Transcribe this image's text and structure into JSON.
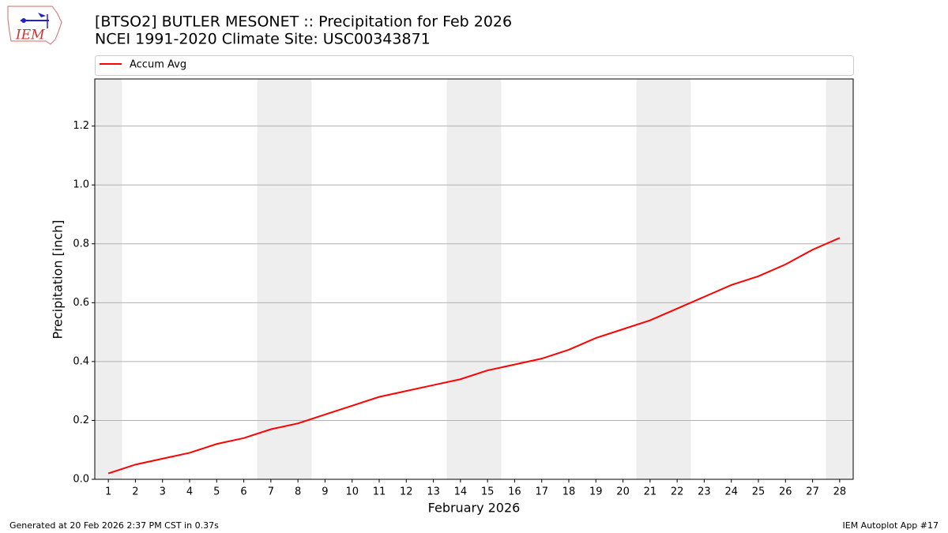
{
  "chart_data": {
    "type": "line",
    "title": "[BTSO2] BUTLER MESONET :: Precipitation for Feb 2026",
    "subtitle": "NCEI 1991-2020 Climate Site: USC00343871",
    "x_label": "February 2026",
    "y_label": "Precipitation [inch]",
    "x": [
      1,
      2,
      3,
      4,
      5,
      6,
      7,
      8,
      9,
      10,
      11,
      12,
      13,
      14,
      15,
      16,
      17,
      18,
      19,
      20,
      21,
      22,
      23,
      24,
      25,
      26,
      27,
      28
    ],
    "series": [
      {
        "name": "Accum Avg",
        "color": "#ff0000",
        "values": [
          0.02,
          0.05,
          0.07,
          0.09,
          0.12,
          0.14,
          0.17,
          0.19,
          0.22,
          0.25,
          0.28,
          0.3,
          0.32,
          0.34,
          0.37,
          0.39,
          0.41,
          0.44,
          0.48,
          0.51,
          0.54,
          0.58,
          0.62,
          0.66,
          0.69,
          0.73,
          0.78,
          0.82
        ]
      }
    ],
    "xlim": [
      0.5,
      28.5
    ],
    "xticks": [
      1,
      2,
      3,
      4,
      5,
      6,
      7,
      8,
      9,
      10,
      11,
      12,
      13,
      14,
      15,
      16,
      17,
      18,
      19,
      20,
      21,
      22,
      23,
      24,
      25,
      26,
      27,
      28
    ],
    "ylim": [
      0,
      1.36
    ],
    "yticks": [
      {
        "value": 0,
        "label": "0.0"
      },
      0.2,
      0.4,
      0.6,
      0.8,
      {
        "value": 1,
        "label": "1.0"
      },
      1.2
    ],
    "grid": true,
    "weekend_shading": [
      [
        0.5,
        1.5
      ],
      [
        6.5,
        8.5
      ],
      [
        13.5,
        15.5
      ],
      [
        20.5,
        22.5
      ],
      [
        27.5,
        28.5
      ]
    ],
    "shading_color": "#eeeeee",
    "legend_position": "top",
    "footer_left": "Generated at 20 Feb 2026 2:37 PM CST in 0.37s",
    "footer_right": "IEM Autoplot App #17",
    "logo_text": "IEM"
  }
}
